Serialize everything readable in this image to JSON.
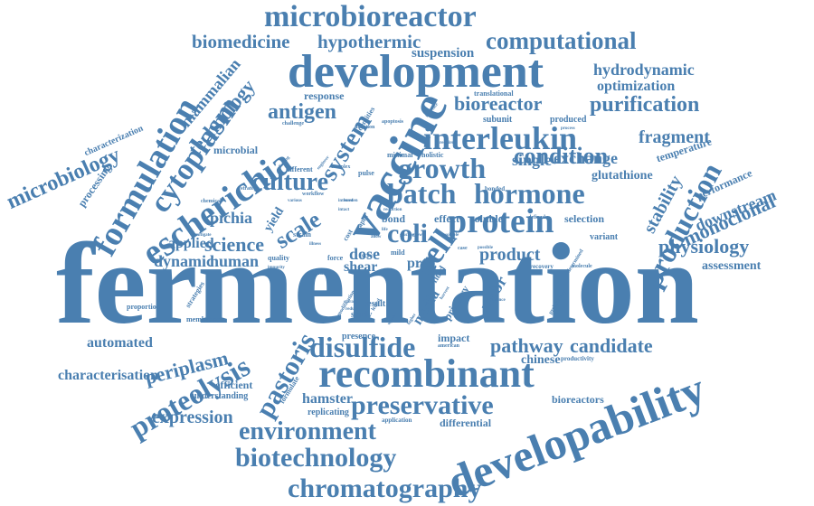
{
  "color": "#4a7fb0",
  "words": [
    "fermentation",
    "vaccine",
    "development",
    "recombinant",
    "developability",
    "microbioreactor",
    "computational",
    "biomedicine",
    "hypothermic",
    "interleukin",
    "escherichia",
    "formulation",
    "cytoplasm",
    "protein",
    "batch",
    "hormone",
    "growth",
    "production",
    "disulfide",
    "chromatography",
    "biotechnology",
    "environment",
    "preservative",
    "proteolysis",
    "pastoris",
    "candidate",
    "pathway",
    "bioreactor",
    "purification",
    "hydrodynamic",
    "optimization",
    "suspension",
    "antigen",
    "culture",
    "system",
    "scale",
    "coli",
    "cell",
    "science",
    "condition",
    "exchange",
    "single",
    "fragment",
    "monoclonal",
    "downstream",
    "physiology",
    "stability",
    "expression",
    "periplasm",
    "automated",
    "characterisation",
    "microbiology",
    "technology",
    "mammalian",
    "dynamic",
    "human",
    "pichia",
    "applied",
    "product",
    "dose",
    "shear",
    "proc",
    "hamster",
    "replicating",
    "differential",
    "chinese",
    "bioreactors",
    "assessment",
    "performance",
    "temperature",
    "glutathione",
    "selection",
    "soluble",
    "effect",
    "bond",
    "impact",
    "presence",
    "efficient",
    "understanding",
    "strategies",
    "membrane",
    "proportion",
    "processing",
    "characterization",
    "microbial",
    "response",
    "translational",
    "subunit",
    "produced",
    "variant",
    "primary",
    "ambr",
    "media",
    "study",
    "result",
    "strain",
    "minimal",
    "holistic",
    "complex",
    "pulse",
    "densities",
    "different",
    "workflow",
    "yield",
    "quality",
    "formulate",
    "productivity",
    "american",
    "application",
    "fluid",
    "mild",
    "force",
    "case",
    "defined",
    "determined",
    "recovery",
    "preliminary",
    "molecule",
    "absence",
    "stable",
    "bonded",
    "rapid",
    "illness",
    "chemical",
    "engineer",
    "challenge",
    "apoptosis",
    "interface",
    "strategy",
    "mitigate",
    "various",
    "glucose",
    "possible",
    "process",
    "interest",
    "intact",
    "modification",
    "finding",
    "impurity",
    "storage",
    "reduce",
    "higher",
    "harvest",
    "lethal",
    "uptake",
    "cost",
    "scfv",
    "reduction",
    "require",
    "life",
    "allow",
    "grown",
    "burden",
    "insoluble",
    "duration"
  ]
}
